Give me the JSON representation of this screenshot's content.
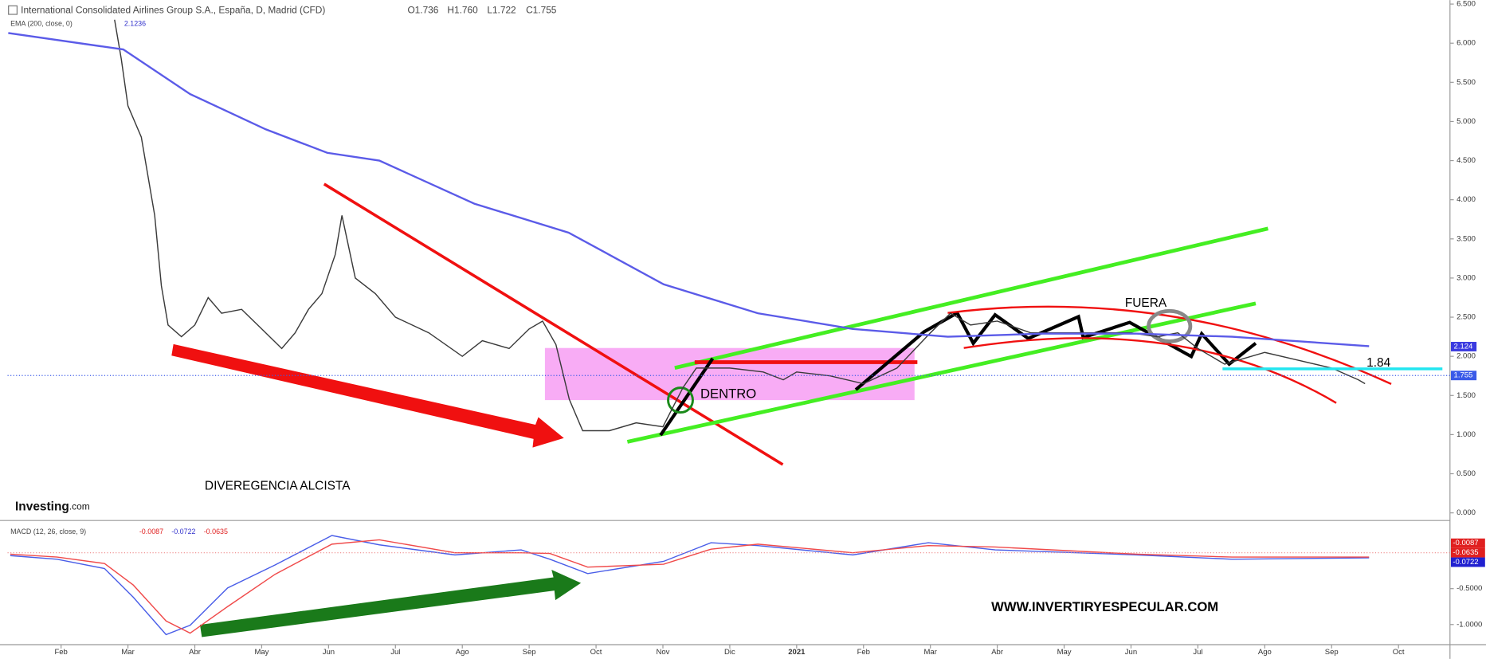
{
  "chart_data": [
    {
      "type": "line",
      "title": "International Consolidated Airlines Group S.A., España, D, Madrid (CFD)",
      "ohlc": [
        "O1.736",
        "H1.760",
        "L1.722",
        "C1.755"
      ],
      "indicator": "EMA (200, close, 0)",
      "indicator_value": "2.1236",
      "xlim": [
        -0.8,
        20.77
      ],
      "xticks": [
        {
          "value": 0,
          "label": "Feb"
        },
        {
          "value": 1,
          "label": "Mar"
        },
        {
          "value": 2,
          "label": "Abr"
        },
        {
          "value": 3,
          "label": "May"
        },
        {
          "value": 4,
          "label": "Jun"
        },
        {
          "value": 5,
          "label": "Jul"
        },
        {
          "value": 6,
          "label": "Ago"
        },
        {
          "value": 7,
          "label": "Sep"
        },
        {
          "value": 8,
          "label": "Oct"
        },
        {
          "value": 9,
          "label": "Nov"
        },
        {
          "value": 10,
          "label": "Dic"
        },
        {
          "value": 11,
          "label": "2021"
        },
        {
          "value": 12,
          "label": "Feb"
        },
        {
          "value": 13,
          "label": "Mar"
        },
        {
          "value": 14,
          "label": "Abr"
        },
        {
          "value": 15,
          "label": "May"
        },
        {
          "value": 16,
          "label": "Jun"
        },
        {
          "value": 17,
          "label": "Jul"
        },
        {
          "value": 18,
          "label": "Ago"
        },
        {
          "value": 19,
          "label": "Sep"
        },
        {
          "value": 20,
          "label": "Oct"
        }
      ],
      "ylim": [
        -0.085,
        6.55
      ],
      "yticks": [
        {
          "value": 0,
          "label": "0.000"
        },
        {
          "value": 0.5,
          "label": "0.500"
        },
        {
          "value": 1,
          "label": "1.000"
        },
        {
          "value": 1.5,
          "label": "1.500"
        },
        {
          "value": 2,
          "label": "2.000"
        },
        {
          "value": 2.5,
          "label": "2.500"
        },
        {
          "value": 3,
          "label": "3.000"
        },
        {
          "value": 3.5,
          "label": "3.500"
        },
        {
          "value": 4,
          "label": "4.000"
        },
        {
          "value": 4.5,
          "label": "4.500"
        },
        {
          "value": 5,
          "label": "5.000"
        },
        {
          "value": 5.5,
          "label": "5.500"
        },
        {
          "value": 6,
          "label": "6.000"
        },
        {
          "value": 6.5,
          "label": "6.500"
        }
      ],
      "series": [
        {
          "name": "Price",
          "color": "#3a3a3a",
          "x": [
            0.8,
            0.9,
            1.0,
            1.2,
            1.4,
            1.5,
            1.6,
            1.8,
            2.0,
            2.2,
            2.4,
            2.7,
            3.0,
            3.3,
            3.5,
            3.7,
            3.9,
            4.1,
            4.2,
            4.4,
            4.7,
            5.0,
            5.5,
            6.0,
            6.3,
            6.7,
            7.0,
            7.2,
            7.4,
            7.6,
            7.8,
            8.2,
            8.6,
            9.0,
            9.3,
            9.5,
            10.0,
            10.5,
            10.8,
            11.0,
            11.5,
            12.0,
            12.5,
            13.0,
            13.3,
            13.6,
            14.0,
            14.5,
            15.0,
            15.5,
            16.0,
            16.4,
            16.7,
            17.0,
            17.4,
            18.0,
            18.5,
            19.0,
            19.4,
            19.5
          ],
          "values": [
            6.3,
            5.8,
            5.2,
            4.8,
            3.8,
            2.9,
            2.4,
            2.25,
            2.4,
            2.75,
            2.55,
            2.6,
            2.35,
            2.1,
            2.3,
            2.6,
            2.8,
            3.3,
            3.8,
            3.0,
            2.8,
            2.5,
            2.3,
            2.0,
            2.2,
            2.1,
            2.35,
            2.45,
            2.15,
            1.45,
            1.05,
            1.05,
            1.15,
            1.1,
            1.6,
            1.85,
            1.85,
            1.8,
            1.7,
            1.8,
            1.75,
            1.65,
            1.85,
            2.3,
            2.55,
            2.4,
            2.45,
            2.3,
            2.3,
            2.3,
            2.3,
            2.25,
            2.3,
            2.1,
            1.9,
            2.05,
            1.95,
            1.85,
            1.7,
            1.65
          ]
        },
        {
          "name": "EMA",
          "color": "#5b5be8",
          "x": [
            -0.79,
            0.93,
            1.93,
            3.06,
            3.98,
            4.76,
            6.18,
            7.59,
            9.01,
            10.42,
            11.84,
            13.26,
            14.67,
            16.09,
            17.51,
            19.56
          ],
          "values": [
            6.13,
            5.92,
            5.35,
            4.9,
            4.6,
            4.5,
            3.95,
            3.58,
            2.92,
            2.55,
            2.35,
            2.25,
            2.29,
            2.29,
            2.25,
            2.13
          ]
        }
      ],
      "ema_last": 2.124,
      "last": 1.755,
      "level": 1.84,
      "annotations": [
        "DIVEREGENCIA ALCISTA",
        "DENTRO",
        "FUERA",
        "WWW.INVERTIRYESPECULAR.COM"
      ],
      "logo": [
        "Investing",
        ".com"
      ]
    },
    {
      "type": "line",
      "title": "MACD (12, 26, close, 9)",
      "legend_values": [
        "-0.0087",
        "-0.0722",
        "-0.0635"
      ],
      "ylim": [
        -1.28,
        0.41
      ],
      "yticks": [
        {
          "value": -0.5,
          "label": "-0.5000"
        },
        {
          "value": -1,
          "label": "-1.0000"
        }
      ],
      "series": [
        {
          "name": "MACD",
          "color": "#4a5ee8",
          "x": [
            -0.76,
            -0.06,
            0.65,
            1.08,
            1.57,
            1.93,
            2.49,
            3.2,
            4.05,
            4.76,
            5.89,
            6.88,
            7.31,
            7.875,
            9.01,
            9.72,
            10.42,
            11.84,
            12.97,
            13.97,
            16.09,
            17.51,
            19.56
          ],
          "values": [
            -0.04,
            -0.09,
            -0.22,
            -0.62,
            -1.14,
            -1.01,
            -0.49,
            -0.17,
            0.24,
            0.11,
            -0.03,
            0.04,
            -0.09,
            -0.29,
            -0.12,
            0.14,
            0.1,
            -0.03,
            0.14,
            0.04,
            -0.03,
            -0.09,
            -0.07
          ]
        },
        {
          "name": "Signal",
          "color": "#f04a4a",
          "x": [
            -0.76,
            -0.06,
            0.65,
            1.08,
            1.57,
            1.93,
            2.49,
            3.2,
            4.05,
            4.76,
            5.89,
            6.88,
            7.31,
            7.875,
            9.01,
            9.72,
            10.42,
            11.84,
            12.97,
            13.97,
            16.09,
            17.51,
            19.56
          ],
          "values": [
            -0.02,
            -0.06,
            -0.15,
            -0.45,
            -0.95,
            -1.12,
            -0.75,
            -0.3,
            0.12,
            0.18,
            0.0,
            0.0,
            -0.01,
            -0.2,
            -0.16,
            0.05,
            0.12,
            0.0,
            0.1,
            0.08,
            -0.02,
            -0.06,
            -0.06
          ]
        }
      ],
      "last_values": [
        -0.0087,
        -0.0635,
        -0.0722
      ]
    }
  ]
}
